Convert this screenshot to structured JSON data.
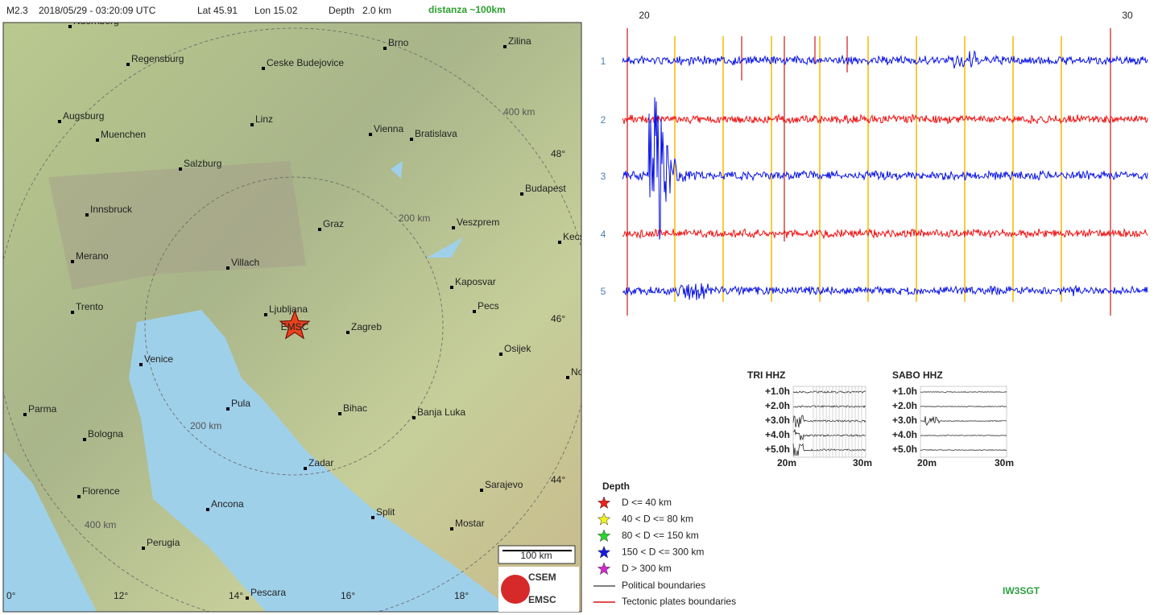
{
  "header": {
    "magnitude": "M2.3",
    "datetime": "2018/05/29 - 03:20:09 UTC",
    "lat": "Lat 45.91",
    "lon": "Lon 15.02",
    "depth": "Depth   2.0 km",
    "distance": "distanza ~100km"
  },
  "map": {
    "cities": [
      "Nuernberg",
      "Regensburg",
      "Ceske Budejovice",
      "Brno",
      "Zilina",
      "Augsburg",
      "Muenchen",
      "Linz",
      "Vienna",
      "Bratislava",
      "Salzburg",
      "Budapest",
      "Innsbruck",
      "Graz",
      "Veszprem",
      "Kecs",
      "Merano",
      "Villach",
      "Kaposvar",
      "Trento",
      "Ljubljana",
      "Pecs",
      "Zagreb",
      "Osijek",
      "Venice",
      "Nov",
      "Pula",
      "Parma",
      "Bihac",
      "Banja Luka",
      "Bologna",
      "Zadar",
      "Sarajevo",
      "Florence",
      "Ancona",
      "Split",
      "Mostar",
      "Perugia",
      "Pescara"
    ],
    "lat_labels": [
      "48°",
      "46°",
      "44°"
    ],
    "lon_labels": [
      "0°",
      "12°",
      "14°",
      "16°",
      "18°"
    ],
    "ring_labels": [
      "400 km",
      "200 km",
      "200 km",
      "400 km"
    ],
    "epicenter": "EMSC",
    "scale": "100 km",
    "logo": [
      "CSEM",
      "EMSC"
    ]
  },
  "seismogram": {
    "time_labels": [
      "20",
      "30"
    ],
    "traces": [
      "1",
      "2",
      "3",
      "4",
      "5"
    ]
  },
  "helicorders": [
    {
      "title": "TRI HHZ",
      "rows": [
        "+1.0h",
        "+2.0h",
        "+3.0h",
        "+4.0h",
        "+5.0h"
      ],
      "x_labels": [
        "20m",
        "30m"
      ]
    },
    {
      "title": "SABO HHZ",
      "rows": [
        "+1.0h",
        "+2.0h",
        "+3.0h",
        "+4.0h",
        "+5.0h"
      ],
      "x_labels": [
        "20m",
        "30m"
      ]
    }
  ],
  "legend": {
    "title": "Depth",
    "items": [
      "D <= 40 km",
      "40 < D <= 80 km",
      "80 < D <= 150 km",
      "150 < D <= 300 km",
      "D > 300 km"
    ],
    "colors": [
      "#e8221c",
      "#f2f21a",
      "#2ad62a",
      "#1a1ae0",
      "#d02ad0"
    ],
    "boundaries": [
      "Political boundaries",
      "Tectonic plates boundaries"
    ]
  },
  "callsign": "IW3SGT"
}
